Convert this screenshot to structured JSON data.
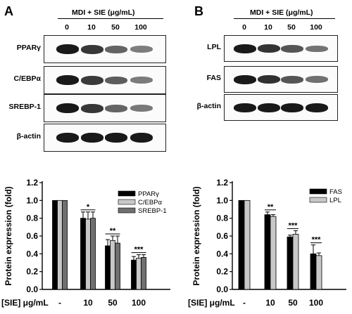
{
  "panelA": {
    "letter": "A",
    "treatment": "MDI + SIE (μg/mL)",
    "lanes": [
      "0",
      "10",
      "50",
      "100"
    ],
    "blots": [
      {
        "label": "PPARγ",
        "intensity": [
          1.0,
          0.8,
          0.5,
          0.33
        ]
      },
      {
        "label": "C/EBPα",
        "intensity": [
          1.0,
          0.78,
          0.55,
          0.35
        ]
      },
      {
        "label": "SREBP-1",
        "intensity": [
          1.0,
          0.8,
          0.5,
          0.36
        ]
      },
      {
        "label": "β-actin",
        "intensity": [
          1.0,
          1.0,
          1.0,
          1.0
        ]
      }
    ]
  },
  "panelB": {
    "letter": "B",
    "treatment": "MDI + SIE (μg/mL)",
    "lanes": [
      "0",
      "10",
      "50",
      "100"
    ],
    "blots": [
      {
        "label": "LPL",
        "intensity": [
          1.0,
          0.82,
          0.6,
          0.4
        ]
      },
      {
        "label": "FAS",
        "intensity": [
          1.0,
          0.85,
          0.6,
          0.42
        ]
      },
      {
        "label": "β-actin",
        "intensity": [
          1.0,
          1.0,
          1.0,
          1.0
        ]
      }
    ]
  },
  "chart_data": [
    {
      "type": "bar",
      "ylabel": "Protein expression (fold)",
      "xlabel": "[SIE] μg/mL",
      "categories": [
        "-",
        "10",
        "50",
        "100"
      ],
      "ylim": [
        0,
        1.2
      ],
      "yticks": [
        "0.0",
        "0.2",
        "0.4",
        "0.6",
        "0.8",
        "1.0",
        "1.2"
      ],
      "legend_position": "top-right",
      "series": [
        {
          "name": "PPARγ",
          "color": "#000000",
          "values": [
            1.0,
            0.8,
            0.49,
            0.33
          ],
          "errors": [
            0,
            0.07,
            0.07,
            0.04
          ]
        },
        {
          "name": "C/EBPα",
          "color": "#c8c8c8",
          "values": [
            1.0,
            0.79,
            0.55,
            0.35
          ],
          "errors": [
            0,
            0.08,
            0.05,
            0.04
          ]
        },
        {
          "name": "SREBP-1",
          "color": "#707070",
          "values": [
            1.0,
            0.8,
            0.52,
            0.36
          ],
          "errors": [
            0,
            0.07,
            0.08,
            0.03
          ]
        }
      ],
      "significance": [
        "",
        "*",
        "**",
        "***"
      ]
    },
    {
      "type": "bar",
      "ylabel": "Protein expression (fold)",
      "xlabel": "[SIE] μg/mL",
      "categories": [
        "-",
        "10",
        "50",
        "100"
      ],
      "ylim": [
        0,
        1.2
      ],
      "yticks": [
        "0.0",
        "0.2",
        "0.4",
        "0.6",
        "0.8",
        "1.0",
        "1.2"
      ],
      "legend_position": "top-right",
      "series": [
        {
          "name": "FAS",
          "color": "#000000",
          "values": [
            1.0,
            0.84,
            0.59,
            0.4
          ],
          "errors": [
            0,
            0.03,
            0.02,
            0.1
          ]
        },
        {
          "name": "LPL",
          "color": "#c8c8c8",
          "values": [
            1.0,
            0.82,
            0.62,
            0.38
          ],
          "errors": [
            0,
            0.02,
            0.04,
            0.03
          ]
        }
      ],
      "significance": [
        "",
        "**",
        "***",
        "***"
      ]
    }
  ]
}
